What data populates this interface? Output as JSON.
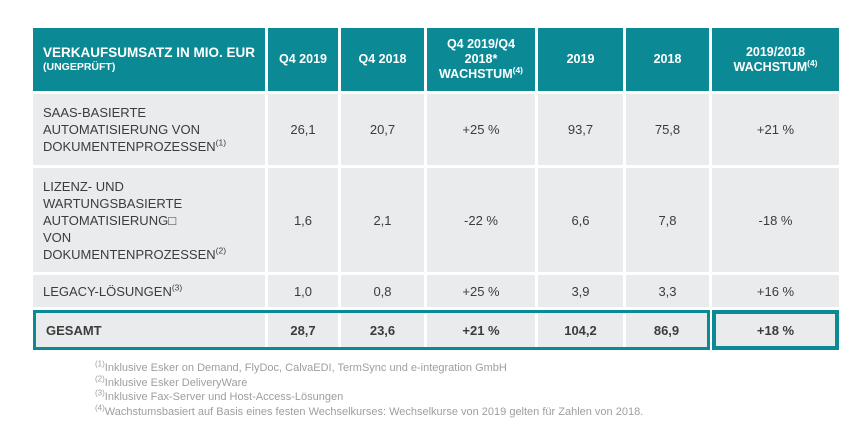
{
  "colors": {
    "teal": "#0b8a96",
    "row_bg": "#e9ebec",
    "text": "#3c3c3c",
    "footnote": "#9e9e9e"
  },
  "chart_data": {
    "type": "table",
    "header": {
      "title": "VERKAUFSUMSATZ IN MIO. EUR",
      "subtitle": "(UNGEPRÜFT)",
      "columns": [
        {
          "label": "Q4 2019",
          "sup": ""
        },
        {
          "label": "Q4 2018",
          "sup": ""
        },
        {
          "label": "Q4 2019/Q4\n2018*\nWACHSTUM",
          "sup": "(4)"
        },
        {
          "label": "2019",
          "sup": ""
        },
        {
          "label": "2018",
          "sup": ""
        },
        {
          "label": "2019/2018\nWACHSTUM",
          "sup": "(4)"
        }
      ]
    },
    "rows": [
      {
        "label": "SAAS-BASIERTE\nAUTOMATISIERUNG VON\nDOKUMENTENPROZESSEN",
        "sup": "(1)",
        "values": [
          "26,1",
          "20,7",
          "+25 %",
          "93,7",
          "75,8",
          "+21 %"
        ]
      },
      {
        "label": "LIZENZ- UND\nWARTUNGSBASIERTE\nAUTOMATISIERUNG□\nVON\nDOKUMENTENPROZESSEN",
        "sup": "(2)",
        "values": [
          "1,6",
          "2,1",
          "-22 %",
          "6,6",
          "7,8",
          "-18 %"
        ]
      },
      {
        "label": "LEGACY-LÖSUNGEN",
        "sup": "(3)",
        "values": [
          "1,0",
          "0,8",
          "+25 %",
          "3,9",
          "3,3",
          "+16 %"
        ]
      }
    ],
    "total": {
      "label": "GESAMT",
      "values": [
        "28,7",
        "23,6",
        "+21 %",
        "104,2",
        "86,9",
        "+18 %"
      ]
    }
  },
  "footnotes": [
    {
      "sup": "(1)",
      "text": "Inklusive Esker on Demand, FlyDoc, CalvaEDI, TermSync und e-integration GmbH"
    },
    {
      "sup": "(2)",
      "text": "Inklusive Esker DeliveryWare"
    },
    {
      "sup": "(3)",
      "text": "Inklusive Fax-Server und Host-Access-Lösungen"
    },
    {
      "sup": "(4)",
      "text": "Wachstumsbasiert auf Basis eines festen Wechselkurses: Wechselkurse von 2019 gelten für Zahlen von 2018."
    }
  ]
}
